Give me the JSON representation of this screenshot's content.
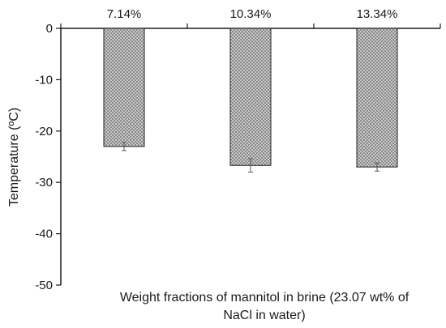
{
  "chart_data": {
    "type": "bar",
    "categories": [
      "7.14%",
      "10.34%",
      "13.34%"
    ],
    "values": [
      -23.0,
      -26.7,
      -27.0
    ],
    "error": [
      0.8,
      1.3,
      0.8
    ],
    "xlabel_lines": [
      "Weight fractions of mannitol  in brine  (23.07 wt% of",
      "NaCl in water)"
    ],
    "ylabel": "Temperature (ºC)",
    "ylim": [
      -50,
      0
    ],
    "yticks": [
      0,
      -10,
      -20,
      -30,
      -40,
      -50
    ],
    "grid": false,
    "legend": "none",
    "bar_fill": "crosshatch-gray"
  }
}
